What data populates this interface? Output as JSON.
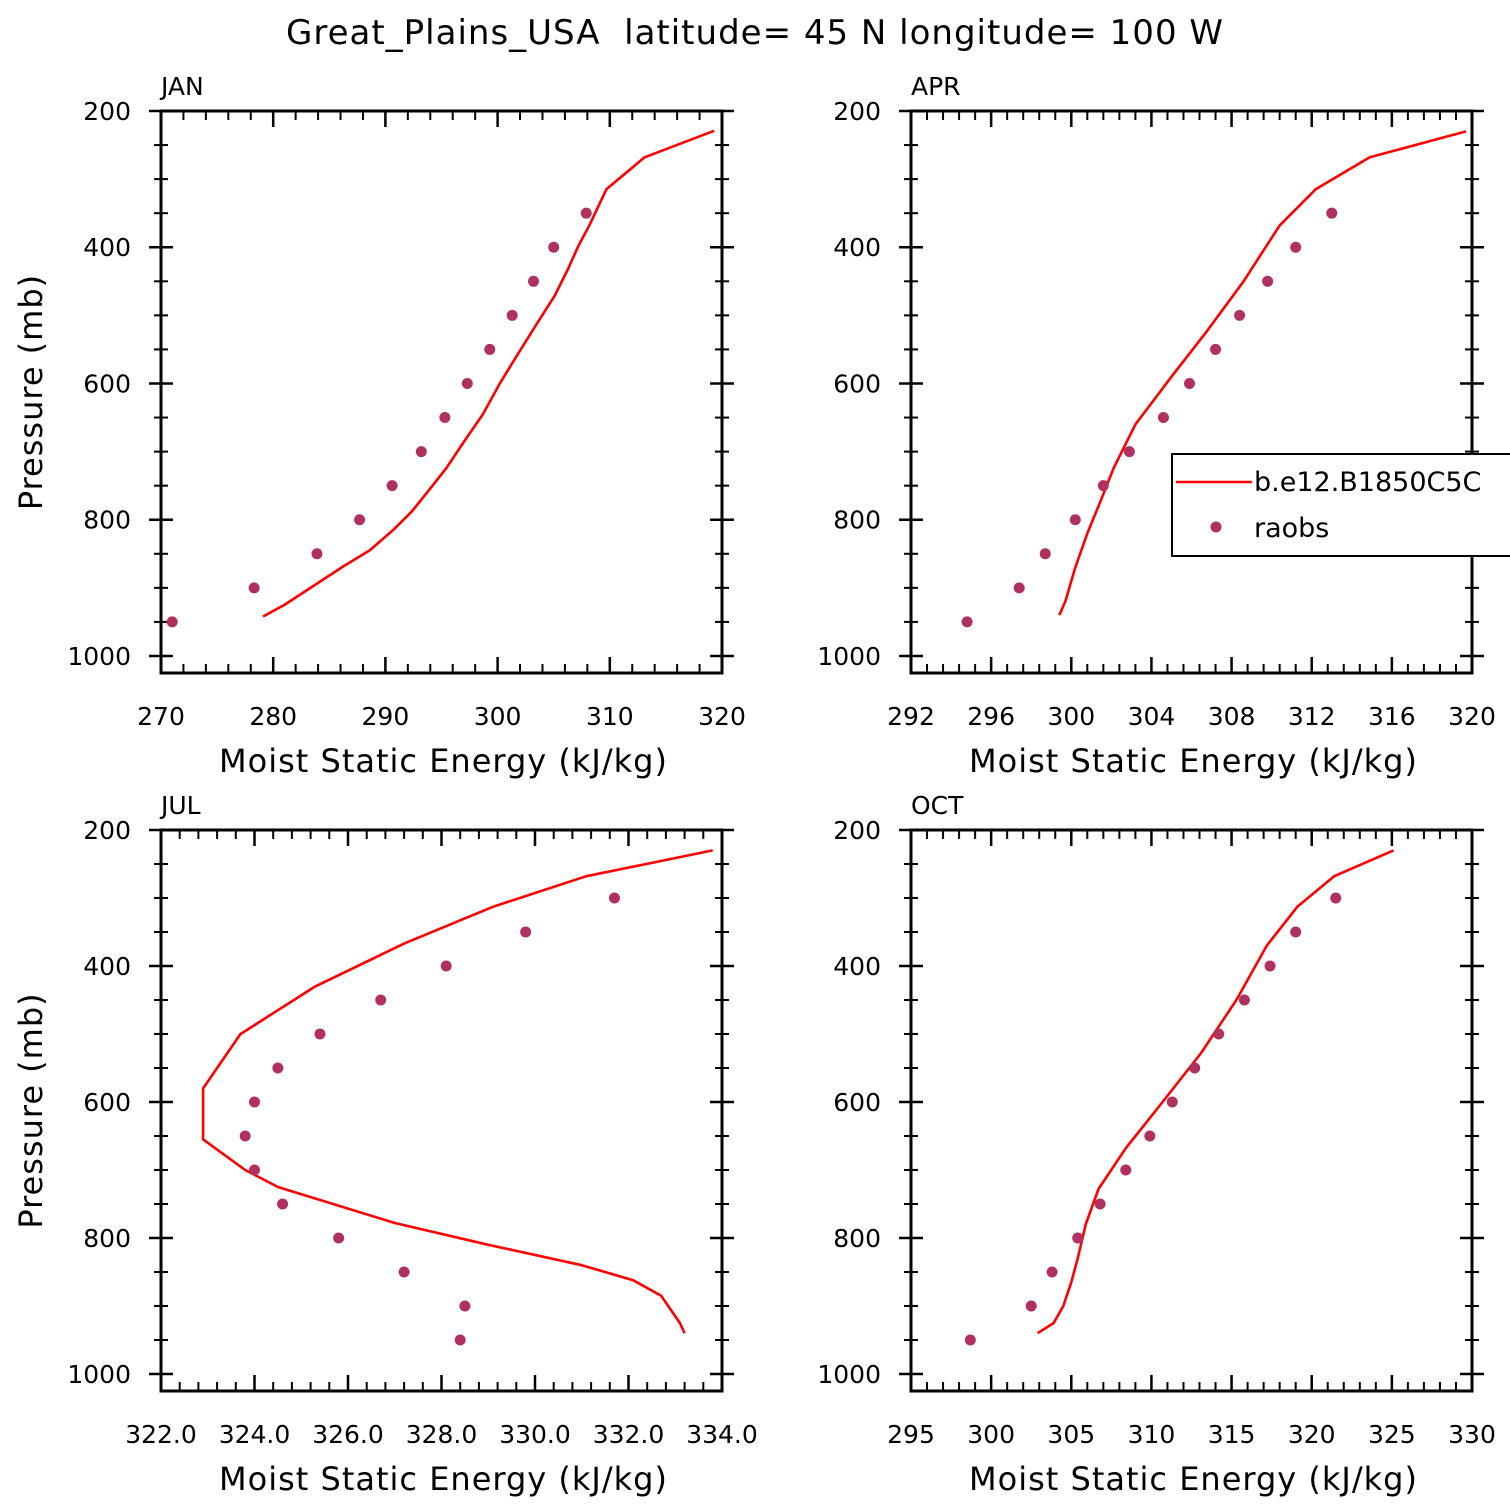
{
  "figure": {
    "title": "Great_Plains_USA  latitude= 45 N longitude= 100 W"
  },
  "colors": {
    "model": "#ff0000",
    "obs": "#b03060",
    "axis": "#000000"
  },
  "legend": {
    "placement": "right, overlapping APR panel",
    "entries": [
      {
        "label": "b.e12.B1850C5C",
        "style": "line",
        "color": "#ff0000"
      },
      {
        "label": "raobs",
        "style": "dot",
        "color": "#b03060"
      }
    ]
  },
  "chart_data": [
    {
      "panel": "JAN",
      "type": "line",
      "title": "JAN",
      "xlabel": "Moist Static Energy (kJ/kg)",
      "ylabel": "Pressure (mb)",
      "xlim": [
        270,
        320
      ],
      "ylim": [
        200,
        1025
      ],
      "y_inverted": true,
      "xticks": [
        270,
        280,
        290,
        300,
        310,
        320
      ],
      "xtick_labels": [
        "270",
        "280",
        "290",
        "300",
        "310",
        "320"
      ],
      "yticks": [
        200,
        400,
        600,
        800,
        1000
      ],
      "ytick_labels": [
        "200",
        "400",
        "600",
        "800",
        "1000"
      ],
      "series": [
        {
          "name": "b.e12.B1850C5C",
          "style": "line",
          "x": [
            279.1,
            281.0,
            286.3,
            288.6,
            290.7,
            292.4,
            294.2,
            295.4,
            297.1,
            298.7,
            300.2,
            301.8,
            303.4,
            305.1,
            306.3,
            307.2,
            308.2,
            309.7,
            313.1,
            319.3
          ],
          "y": [
            942,
            925,
            868,
            845,
            815,
            787,
            750,
            725,
            683,
            645,
            600,
            557,
            515,
            471,
            431,
            398,
            367,
            315,
            268,
            229
          ]
        },
        {
          "name": "raobs",
          "style": "dot",
          "x": [
            271.0,
            278.3,
            283.9,
            287.7,
            290.6,
            293.2,
            295.3,
            297.3,
            299.3,
            301.3,
            303.2,
            305.0,
            307.9
          ],
          "y": [
            950,
            900,
            850,
            800,
            750,
            700,
            650,
            600,
            550,
            500,
            450,
            400,
            350
          ]
        }
      ]
    },
    {
      "panel": "APR",
      "type": "line",
      "title": "APR",
      "xlabel": "Moist Static Energy (kJ/kg)",
      "ylabel": "",
      "xlim": [
        292,
        320
      ],
      "ylim": [
        200,
        1025
      ],
      "y_inverted": true,
      "xticks": [
        292,
        296,
        300,
        304,
        308,
        312,
        316,
        320
      ],
      "xtick_labels": [
        "292",
        "296",
        "300",
        "304",
        "308",
        "312",
        "316",
        "320"
      ],
      "yticks": [
        200,
        400,
        600,
        800,
        1000
      ],
      "ytick_labels": [
        "200",
        "400",
        "600",
        "800",
        "1000"
      ],
      "series": [
        {
          "name": "b.e12.B1850C5C",
          "style": "line",
          "x": [
            299.4,
            299.7,
            300.2,
            300.8,
            301.5,
            302.1,
            303.2,
            305.0,
            306.8,
            308.6,
            310.4,
            312.2,
            314.9,
            319.7
          ],
          "y": [
            940,
            920,
            870,
            820,
            770,
            725,
            660,
            590,
            522,
            450,
            368,
            315,
            268,
            230
          ]
        },
        {
          "name": "raobs",
          "style": "dot",
          "x": [
            294.8,
            297.4,
            298.7,
            300.2,
            301.6,
            302.9,
            304.6,
            305.9,
            307.2,
            308.4,
            309.8,
            311.2,
            313.0
          ],
          "y": [
            950,
            900,
            850,
            800,
            750,
            700,
            650,
            600,
            550,
            500,
            450,
            400,
            350
          ]
        }
      ]
    },
    {
      "panel": "JUL",
      "type": "line",
      "title": "JUL",
      "xlabel": "Moist Static Energy (kJ/kg)",
      "ylabel": "Pressure (mb)",
      "xlim": [
        322,
        334
      ],
      "ylim": [
        200,
        1025
      ],
      "y_inverted": true,
      "xticks": [
        322,
        324,
        326,
        328,
        330,
        332,
        334
      ],
      "xtick_labels": [
        "322.0",
        "324.0",
        "326.0",
        "328.0",
        "330.0",
        "332.0",
        "334.0"
      ],
      "yticks": [
        200,
        400,
        600,
        800,
        1000
      ],
      "ytick_labels": [
        "200",
        "400",
        "600",
        "800",
        "1000"
      ],
      "series": [
        {
          "name": "b.e12.B1850C5C",
          "style": "line",
          "x": [
            333.2,
            333.1,
            332.7,
            332.1,
            331.0,
            329.0,
            327.0,
            324.5,
            323.8,
            322.9,
            322.9,
            323.7,
            325.3,
            327.2,
            329.1,
            331.1,
            333.8
          ],
          "y": [
            940,
            925,
            885,
            862,
            840,
            810,
            778,
            725,
            700,
            655,
            580,
            500,
            430,
            367,
            313,
            268,
            230
          ]
        },
        {
          "name": "raobs",
          "style": "dot",
          "x": [
            328.4,
            328.5,
            327.2,
            325.8,
            324.6,
            324.0,
            323.8,
            324.0,
            324.5,
            325.4,
            326.7,
            328.1,
            329.8,
            331.7
          ],
          "y": [
            950,
            900,
            850,
            800,
            750,
            700,
            650,
            600,
            550,
            500,
            450,
            400,
            350,
            300
          ]
        }
      ]
    },
    {
      "panel": "OCT",
      "type": "line",
      "title": "OCT",
      "xlabel": "Moist Static Energy (kJ/kg)",
      "ylabel": "",
      "xlim": [
        295,
        330
      ],
      "ylim": [
        200,
        1025
      ],
      "y_inverted": true,
      "xticks": [
        295,
        300,
        305,
        310,
        315,
        320,
        325,
        330
      ],
      "xtick_labels": [
        "295",
        "300",
        "305",
        "310",
        "315",
        "320",
        "325",
        "330"
      ],
      "yticks": [
        200,
        400,
        600,
        800,
        1000
      ],
      "ytick_labels": [
        "200",
        "400",
        "600",
        "800",
        "1000"
      ],
      "series": [
        {
          "name": "b.e12.B1850C5C",
          "style": "line",
          "x": [
            302.9,
            303.9,
            304.5,
            305.0,
            305.4,
            305.9,
            306.7,
            308.4,
            310.7,
            313.1,
            315.3,
            317.2,
            319.1,
            321.4,
            325.1
          ],
          "y": [
            940,
            925,
            900,
            865,
            830,
            780,
            728,
            668,
            600,
            528,
            450,
            370,
            313,
            268,
            230
          ]
        },
        {
          "name": "raobs",
          "style": "dot",
          "x": [
            298.7,
            302.5,
            303.8,
            305.4,
            306.8,
            308.4,
            309.9,
            311.3,
            312.7,
            314.2,
            315.8,
            317.4,
            319.0,
            321.5
          ],
          "y": [
            950,
            900,
            850,
            800,
            750,
            700,
            650,
            600,
            550,
            500,
            450,
            400,
            350,
            300
          ]
        }
      ]
    }
  ]
}
